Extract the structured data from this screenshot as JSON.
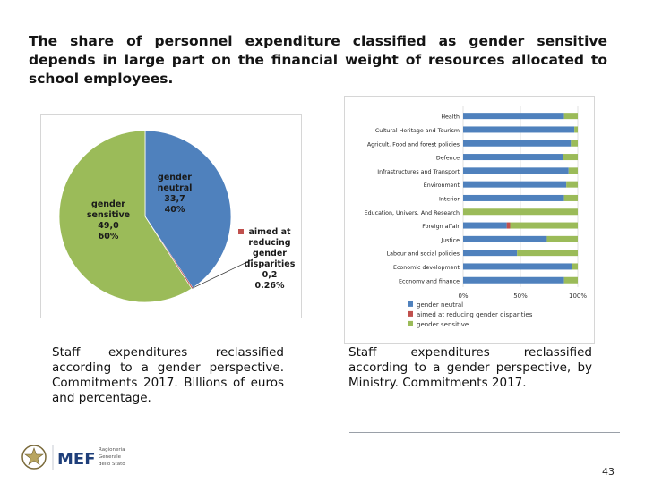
{
  "title": "The share of personnel expenditure classified as gender sensitive depends in large part on the financial weight of resources allocated to school employees.",
  "captions": {
    "left": "Staff expenditures reclassified according to a gender perspective. Commitments 2017. Billions of euros and percentage.",
    "right": "Staff expenditures reclassified according to a gender perspective, by Ministry. Commitments 2017."
  },
  "page_number": "43",
  "logo": {
    "mef_text": "MEF",
    "small_lines": [
      "Ragioneria",
      "Generale",
      "dello Stato"
    ]
  },
  "colors": {
    "neutral": "#4F81BD",
    "reducing": "#C0504D",
    "sensitive": "#9BBB59"
  },
  "chart_data": [
    {
      "type": "pie",
      "title": "",
      "slices": [
        {
          "name": "gender neutral",
          "value": 33.7,
          "percent_label": "40%",
          "value_label": "33,7",
          "label_lines": [
            "gender",
            "neutral",
            "33,7",
            "40%"
          ]
        },
        {
          "name": "aimed at reducing gender disparities",
          "value": 0.2,
          "percent_label": "0.26%",
          "value_label": "0,2",
          "label_lines": [
            "aimed at",
            "reducing",
            "gender",
            "disparities",
            "0,2",
            "0.26%"
          ]
        },
        {
          "name": "gender sensitive",
          "value": 49.0,
          "percent_label": "60%",
          "value_label": "49,0",
          "label_lines": [
            "gender",
            "sensitive",
            "49,0",
            "60%"
          ]
        }
      ]
    },
    {
      "type": "bar",
      "orientation": "horizontal",
      "stacked": "percent",
      "categories": [
        "Health",
        "Cultural Heritage and Tourism",
        "Agricult. Food and forest policies",
        "Defence",
        "Infrastructures and Transport",
        "Environment",
        "Interior",
        "Education, Univers. And Research",
        "Foreign affair",
        "Justice",
        "Labour and social policies",
        "Economic development",
        "Economy and finance"
      ],
      "series": [
        {
          "name": "gender neutral",
          "values": [
            88,
            97,
            94,
            87,
            92,
            90,
            88,
            0,
            38,
            73,
            47,
            95,
            88
          ]
        },
        {
          "name": "aimed at reducing gender disparities",
          "values": [
            0,
            0,
            0,
            0,
            0,
            0,
            0,
            0,
            3,
            0,
            0,
            0,
            0
          ]
        },
        {
          "name": "gender sensitive",
          "values": [
            12,
            3,
            6,
            13,
            8,
            10,
            12,
            100,
            59,
            27,
            53,
            5,
            12
          ]
        }
      ],
      "xticks": [
        "0%",
        "50%",
        "100%"
      ],
      "xlim": [
        0,
        100
      ],
      "legend": [
        "gender neutral",
        "aimed at reducing gender disparities",
        "gender sensitive"
      ]
    }
  ]
}
